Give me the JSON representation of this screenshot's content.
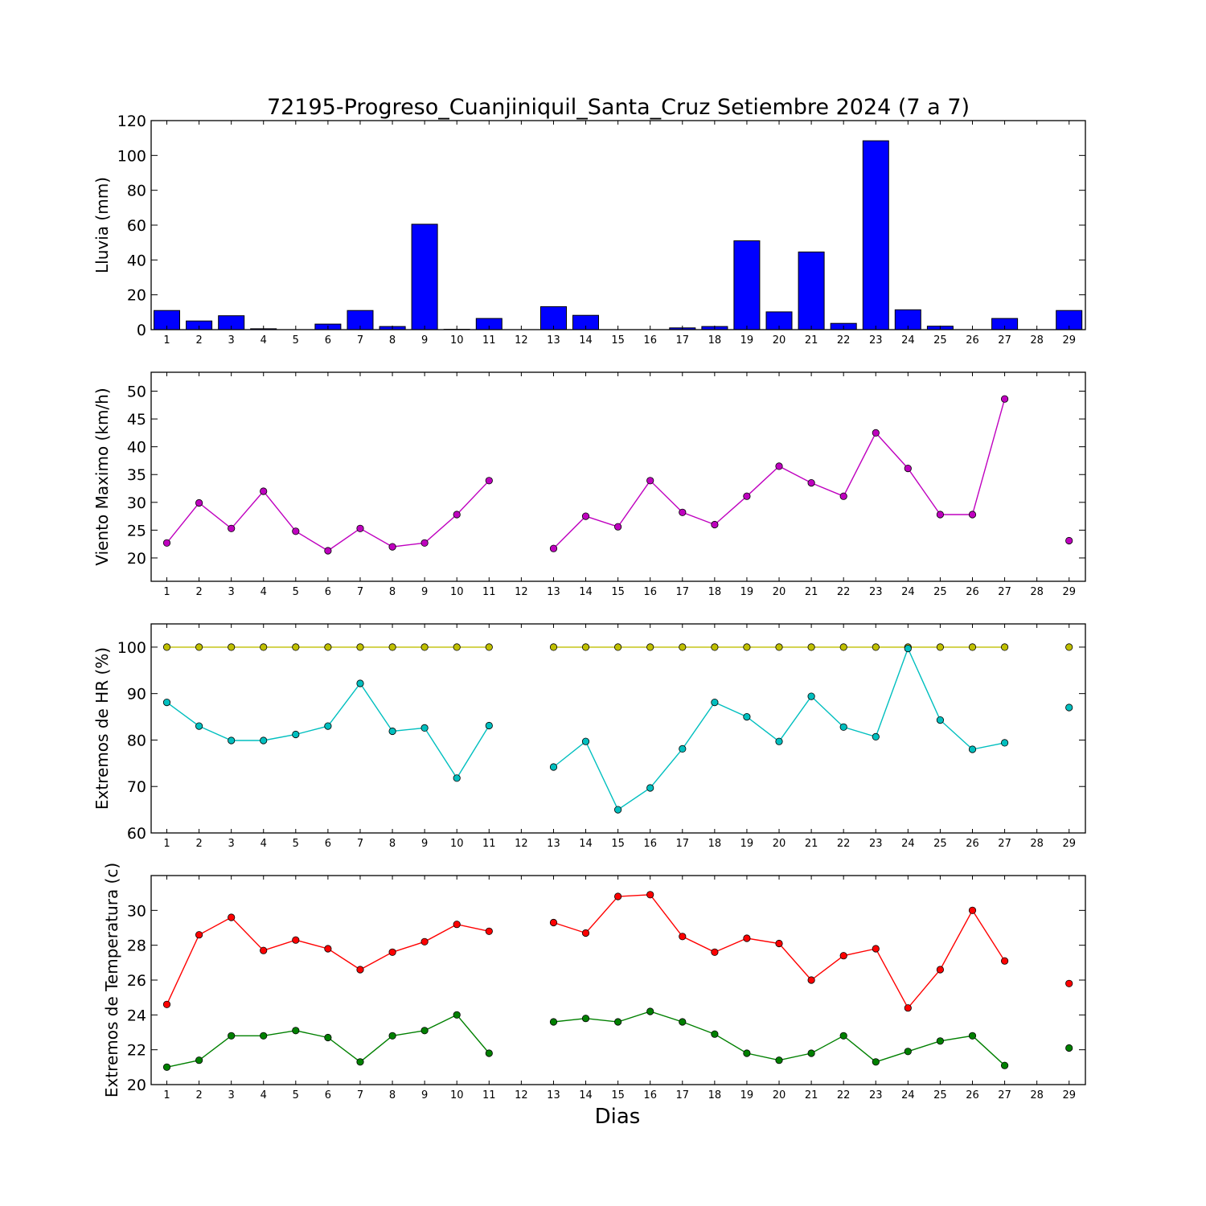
{
  "figure": {
    "title": "72195-Progreso_Cuanjiniquil_Santa_Cruz Setiembre 2024  (7 a 7)",
    "xlabel": "Dias"
  },
  "chart_data": [
    {
      "type": "bar",
      "ylabel": "Lluvia (mm)",
      "ylim": [
        0,
        120
      ],
      "yticks": [
        0,
        20,
        40,
        60,
        80,
        100,
        120
      ],
      "categories": [
        1,
        2,
        3,
        4,
        5,
        6,
        7,
        8,
        9,
        10,
        11,
        12,
        13,
        14,
        15,
        16,
        17,
        18,
        19,
        20,
        21,
        22,
        23,
        24,
        25,
        26,
        27,
        28,
        29
      ],
      "series": [
        {
          "color": "#0000ff",
          "values": [
            11,
            5,
            8,
            0.5,
            0,
            3.2,
            11,
            1.8,
            60.5,
            0.2,
            6.4,
            null,
            13.2,
            8.2,
            0,
            0,
            1,
            1.8,
            51,
            10.2,
            44.6,
            3.6,
            108.4,
            11.4,
            2,
            0,
            6.4,
            null,
            11
          ]
        }
      ],
      "grid": false
    },
    {
      "type": "line",
      "ylabel": "Viento Maximo (km/h)",
      "ylim": [
        15.8,
        53.4
      ],
      "yticks": [
        20,
        25,
        30,
        35,
        40,
        45,
        50
      ],
      "categories": [
        1,
        2,
        3,
        4,
        5,
        6,
        7,
        8,
        9,
        10,
        11,
        12,
        13,
        14,
        15,
        16,
        17,
        18,
        19,
        20,
        21,
        22,
        23,
        24,
        25,
        26,
        27,
        28,
        29
      ],
      "series": [
        {
          "color": "#bf00bf",
          "values": [
            22.7,
            29.9,
            25.3,
            32.0,
            24.8,
            21.3,
            25.3,
            22.0,
            22.7,
            27.8,
            33.9,
            null,
            21.7,
            27.5,
            25.6,
            33.9,
            28.2,
            26.0,
            31.1,
            36.5,
            33.5,
            31.1,
            42.5,
            36.1,
            27.8,
            27.8,
            48.6,
            null,
            23.1
          ]
        }
      ],
      "grid": false
    },
    {
      "type": "line",
      "ylabel": "Extremos de HR (%)",
      "ylim": [
        60,
        105
      ],
      "yticks": [
        60,
        70,
        80,
        90,
        100
      ],
      "categories": [
        1,
        2,
        3,
        4,
        5,
        6,
        7,
        8,
        9,
        10,
        11,
        12,
        13,
        14,
        15,
        16,
        17,
        18,
        19,
        20,
        21,
        22,
        23,
        24,
        25,
        26,
        27,
        28,
        29
      ],
      "series": [
        {
          "color": "#bfbf00",
          "values": [
            100,
            100,
            100,
            100,
            100,
            100,
            100,
            100,
            100,
            100,
            100,
            null,
            100,
            100,
            100,
            100,
            100,
            100,
            100,
            100,
            100,
            100,
            100,
            100,
            100,
            100,
            100,
            null,
            100
          ]
        },
        {
          "color": "#00bfbf",
          "values": [
            88.1,
            83.0,
            79.9,
            79.9,
            81.2,
            83.0,
            92.2,
            81.9,
            82.6,
            71.8,
            83.1,
            null,
            74.2,
            79.7,
            65.0,
            69.7,
            78.1,
            88.1,
            85.0,
            79.7,
            89.4,
            82.8,
            80.7,
            99.7,
            84.3,
            78.0,
            79.4,
            null,
            87.0
          ]
        }
      ],
      "grid": false
    },
    {
      "type": "line",
      "ylabel": "Extremos de Temperatura (c)",
      "ylim": [
        20,
        32
      ],
      "yticks": [
        20,
        22,
        24,
        26,
        28,
        30
      ],
      "categories": [
        1,
        2,
        3,
        4,
        5,
        6,
        7,
        8,
        9,
        10,
        11,
        12,
        13,
        14,
        15,
        16,
        17,
        18,
        19,
        20,
        21,
        22,
        23,
        24,
        25,
        26,
        27,
        28,
        29
      ],
      "series": [
        {
          "color": "#ff0000",
          "values": [
            24.6,
            28.6,
            29.6,
            27.7,
            28.3,
            27.8,
            26.6,
            27.6,
            28.2,
            29.2,
            28.8,
            null,
            29.3,
            28.7,
            30.8,
            30.9,
            28.5,
            27.6,
            28.4,
            28.1,
            26.0,
            27.4,
            27.8,
            24.4,
            26.6,
            30.0,
            27.1,
            null,
            25.8
          ]
        },
        {
          "color": "#008000",
          "values": [
            21.0,
            21.4,
            22.8,
            22.8,
            23.1,
            22.7,
            21.3,
            22.8,
            23.1,
            24.0,
            21.8,
            null,
            23.6,
            23.8,
            23.6,
            24.2,
            23.6,
            22.9,
            21.8,
            21.4,
            21.8,
            22.8,
            21.3,
            21.9,
            22.5,
            22.8,
            21.1,
            null,
            22.1
          ]
        }
      ],
      "grid": false
    }
  ]
}
